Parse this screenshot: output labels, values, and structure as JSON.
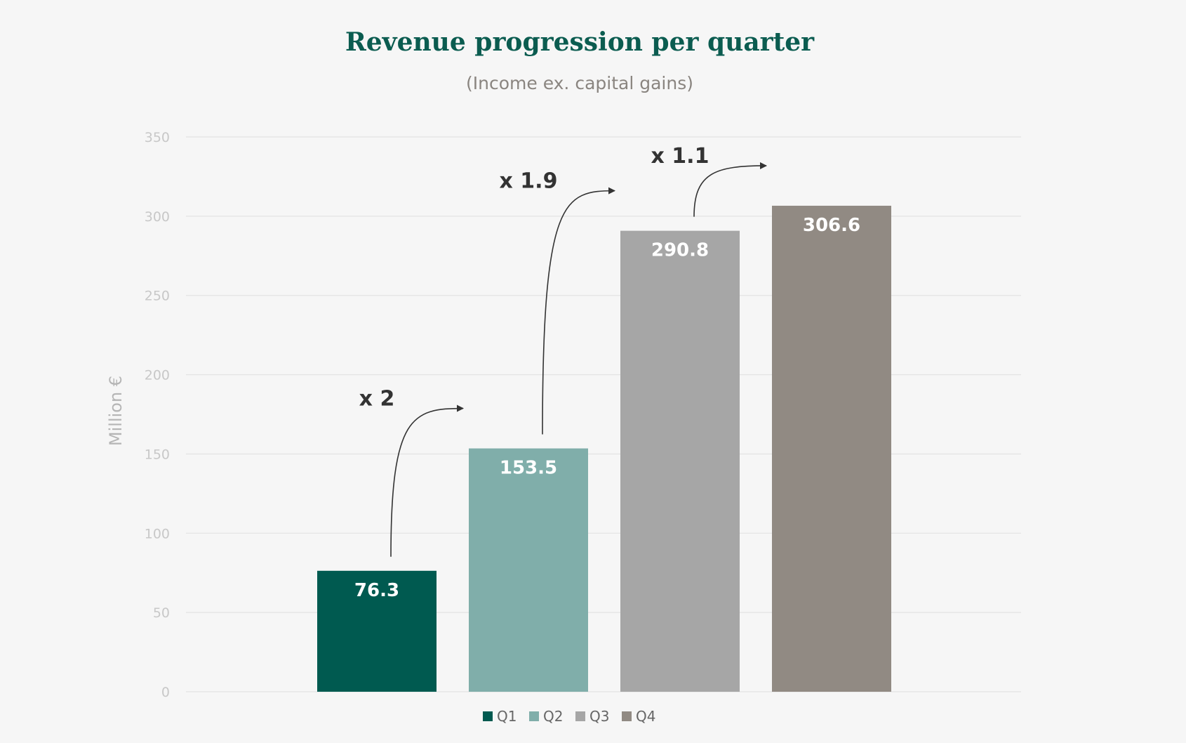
{
  "chart_data": {
    "type": "bar",
    "title": "Revenue progression per quarter",
    "subtitle": "(Income ex. capital gains)",
    "ylabel": "Million €",
    "xlabel": "",
    "ylim": [
      0,
      350
    ],
    "yticks": [
      0,
      50,
      100,
      150,
      200,
      250,
      300,
      350
    ],
    "grid": true,
    "categories": [
      "Q1",
      "Q2",
      "Q3",
      "Q4"
    ],
    "values": [
      76.3,
      153.5,
      290.8,
      306.6
    ],
    "data_labels": [
      "76.3",
      "153.5",
      "290.8",
      "306.6"
    ],
    "colors": [
      "#005a50",
      "#80aeaa",
      "#a6a6a6",
      "#918a83"
    ],
    "multipliers": [
      {
        "from": "Q1",
        "to": "Q2",
        "label": "x 2"
      },
      {
        "from": "Q2",
        "to": "Q3",
        "label": "x 1.9"
      },
      {
        "from": "Q3",
        "to": "Q4",
        "label": "x 1.1"
      }
    ],
    "legend": [
      "Q1",
      "Q2",
      "Q3",
      "Q4"
    ],
    "legend_position": "bottom"
  },
  "colors": {
    "title": "#0b5c50",
    "subtitle": "#8a8580",
    "axis_text": "#c8c8c8",
    "ylabel": "#b5b5b5",
    "grid": "#e4e4e4",
    "multiplier_text": "#333333",
    "data_label": "#ffffff",
    "legend_text": "#666666"
  }
}
